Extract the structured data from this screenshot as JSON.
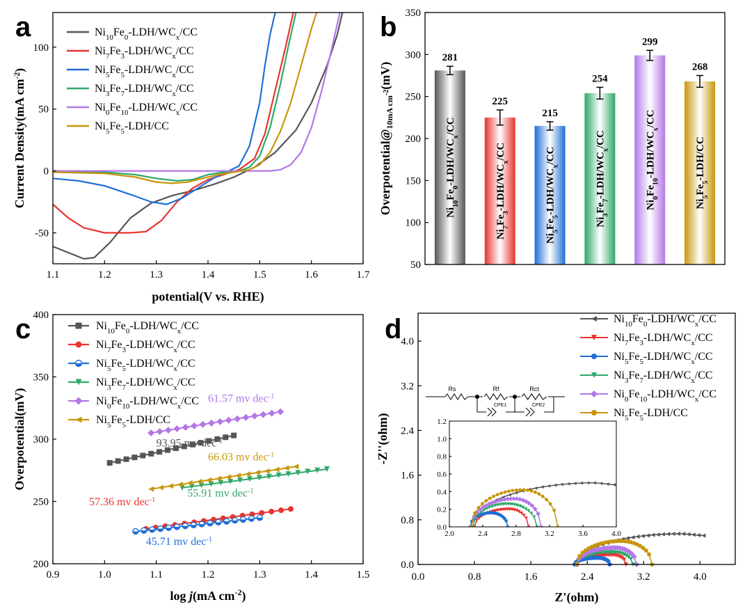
{
  "colors": {
    "s1": "#555555",
    "s2": "#e8332f",
    "s3": "#1f6fd6",
    "s4": "#2ea868",
    "s5": "#b277e8",
    "s6": "#c8960a"
  },
  "series_names": [
    "Ni10Fe0-LDH/WCx/CC",
    "Ni7Fe3-LDH/WCx/CC",
    "Ni5Fe5-LDH/WCx/CC",
    "Ni3Fe7-LDH/WCx/CC",
    "Ni0Fe10-LDH/WCx/CC",
    "Ni5Fe5-LDH/CC"
  ],
  "circuit": {
    "rs": "Rs",
    "rf": "Rf",
    "rct": "Rct",
    "cpe1": "CPE1",
    "cpe2": "CPE2"
  },
  "chart_data": [
    {
      "panel": "a",
      "type": "line",
      "title": "",
      "xlabel": "potential(V vs. RHE)",
      "ylabel": "Current Density(mA cm-2)",
      "xlim": [
        1.1,
        1.7
      ],
      "ylim": [
        -75,
        128
      ],
      "xticks": [
        "1.1",
        "1.2",
        "1.3",
        "1.4",
        "1.5",
        "1.6",
        "1.7"
      ],
      "yticks": [
        "-50",
        "0",
        "50",
        "100"
      ],
      "series": [
        {
          "name": "Ni10Fe0-LDH/WCx/CC",
          "color_key": "s1",
          "points": [
            [
              1.1,
              -61
            ],
            [
              1.13,
              -66
            ],
            [
              1.16,
              -71
            ],
            [
              1.18,
              -70
            ],
            [
              1.21,
              -58
            ],
            [
              1.25,
              -38
            ],
            [
              1.29,
              -26
            ],
            [
              1.33,
              -20
            ],
            [
              1.37,
              -16
            ],
            [
              1.41,
              -11
            ],
            [
              1.45,
              -5
            ],
            [
              1.49,
              3
            ],
            [
              1.53,
              15
            ],
            [
              1.57,
              33
            ],
            [
              1.6,
              55
            ],
            [
              1.63,
              85
            ],
            [
              1.65,
              110
            ],
            [
              1.66,
              128
            ]
          ]
        },
        {
          "name": "Ni7Fe3-LDH/WCx/CC",
          "color_key": "s2",
          "points": [
            [
              1.1,
              -27
            ],
            [
              1.13,
              -38
            ],
            [
              1.16,
              -46
            ],
            [
              1.2,
              -50
            ],
            [
              1.25,
              -50
            ],
            [
              1.28,
              -49
            ],
            [
              1.31,
              -40
            ],
            [
              1.34,
              -25
            ],
            [
              1.37,
              -14
            ],
            [
              1.4,
              -7
            ],
            [
              1.43,
              -3
            ],
            [
              1.46,
              1
            ],
            [
              1.49,
              10
            ],
            [
              1.51,
              30
            ],
            [
              1.53,
              65
            ],
            [
              1.55,
              100
            ],
            [
              1.565,
              128
            ]
          ]
        },
        {
          "name": "Ni5Fe5-LDH/WCx/CC",
          "color_key": "s3",
          "points": [
            [
              1.1,
              -6
            ],
            [
              1.15,
              -8
            ],
            [
              1.2,
              -12
            ],
            [
              1.25,
              -19
            ],
            [
              1.29,
              -25
            ],
            [
              1.32,
              -27
            ],
            [
              1.35,
              -22
            ],
            [
              1.38,
              -14
            ],
            [
              1.41,
              -6
            ],
            [
              1.44,
              0
            ],
            [
              1.46,
              4
            ],
            [
              1.48,
              20
            ],
            [
              1.5,
              55
            ],
            [
              1.51,
              85
            ],
            [
              1.52,
              110
            ],
            [
              1.53,
              128
            ]
          ]
        },
        {
          "name": "Ni3Fe7-LDH/WCx/CC",
          "color_key": "s4",
          "points": [
            [
              1.1,
              0
            ],
            [
              1.2,
              -1
            ],
            [
              1.26,
              -3
            ],
            [
              1.3,
              -6
            ],
            [
              1.34,
              -8
            ],
            [
              1.37,
              -7
            ],
            [
              1.4,
              -3
            ],
            [
              1.43,
              -1
            ],
            [
              1.46,
              0
            ],
            [
              1.48,
              3
            ],
            [
              1.5,
              12
            ],
            [
              1.52,
              35
            ],
            [
              1.54,
              70
            ],
            [
              1.555,
              100
            ],
            [
              1.57,
              128
            ]
          ]
        },
        {
          "name": "Ni0Fe10-LDH/WCx/CC",
          "color_key": "s5",
          "points": [
            [
              1.1,
              0
            ],
            [
              1.3,
              0
            ],
            [
              1.45,
              0
            ],
            [
              1.52,
              0
            ],
            [
              1.54,
              1
            ],
            [
              1.56,
              5
            ],
            [
              1.58,
              15
            ],
            [
              1.6,
              35
            ],
            [
              1.62,
              65
            ],
            [
              1.64,
              100
            ],
            [
              1.655,
              128
            ]
          ]
        },
        {
          "name": "Ni5Fe5-LDH/CC",
          "color_key": "s6",
          "points": [
            [
              1.1,
              -1
            ],
            [
              1.2,
              -2
            ],
            [
              1.26,
              -5
            ],
            [
              1.3,
              -9
            ],
            [
              1.33,
              -10
            ],
            [
              1.36,
              -9
            ],
            [
              1.39,
              -6
            ],
            [
              1.42,
              -3
            ],
            [
              1.45,
              -1
            ],
            [
              1.48,
              1
            ],
            [
              1.5,
              5
            ],
            [
              1.52,
              15
            ],
            [
              1.54,
              32
            ],
            [
              1.56,
              55
            ],
            [
              1.58,
              85
            ],
            [
              1.6,
              115
            ],
            [
              1.61,
              128
            ]
          ]
        }
      ]
    },
    {
      "panel": "b",
      "type": "bar",
      "title": "",
      "xlabel": "",
      "ylabel": "Overpotential@10mA cm-2(mV)",
      "ylim": [
        50,
        350
      ],
      "yticks": [
        "50",
        "100",
        "150",
        "200",
        "250",
        "300",
        "350"
      ],
      "categories": [
        "Ni10Fe0-LDH/WCx/CC",
        "Ni7Fe3-LDH/WCx/CC",
        "Ni5Fe5-LDH/WCx/CC",
        "Ni3Fe7-LDH/WCx/CC",
        "Ni0Fe10-LDH/WCx/CC",
        "Ni5Fe5-LDH/CC"
      ],
      "values": [
        281,
        225,
        215,
        254,
        299,
        268
      ],
      "value_labels": [
        "281",
        "225",
        "215",
        "254",
        "299",
        "268"
      ],
      "errors": [
        5,
        9,
        5,
        7,
        6,
        7
      ]
    },
    {
      "panel": "c",
      "type": "scatter",
      "title": "",
      "xlabel": "log j(mA cm-2)",
      "ylabel": "Overpotential(mV)",
      "xlim": [
        0.9,
        1.5
      ],
      "ylim": [
        200,
        400
      ],
      "xticks": [
        "0.9",
        "1.0",
        "1.1",
        "1.2",
        "1.3",
        "1.4",
        "1.5"
      ],
      "yticks": [
        "200",
        "250",
        "300",
        "350",
        "400"
      ],
      "series": [
        {
          "name": "Ni10Fe0-LDH/WCx/CC",
          "color_key": "s1",
          "marker": "square",
          "x_range": [
            1.01,
            1.25
          ],
          "y_range": [
            281,
            303
          ],
          "slope_label": "93.95 mv dec-1"
        },
        {
          "name": "Ni7Fe3-LDH/WCx/CC",
          "color_key": "s2",
          "marker": "circle",
          "x_range": [
            1.08,
            1.36
          ],
          "y_range": [
            228,
            244
          ],
          "slope_label": "57.36 mv dec-1"
        },
        {
          "name": "Ni5Fe5-LDH/WCx/CC",
          "color_key": "s3",
          "marker": "circle-half",
          "x_range": [
            1.06,
            1.3
          ],
          "y_range": [
            226,
            237
          ],
          "slope_label": "45.71 mv dec-1"
        },
        {
          "name": "Ni3Fe7-LDH/WCx/CC",
          "color_key": "s4",
          "marker": "triangle-down",
          "x_range": [
            1.15,
            1.43
          ],
          "y_range": [
            261,
            276
          ],
          "slope_label": "55.91 mv dec-1"
        },
        {
          "name": "Ni0Fe10-LDH/WCx/CC",
          "color_key": "s5",
          "marker": "diamond",
          "x_range": [
            1.09,
            1.34
          ],
          "y_range": [
            305,
            322
          ],
          "slope_label": "61.57 mv dec-1"
        },
        {
          "name": "Ni5Fe5-LDH/CC",
          "color_key": "s6",
          "marker": "triangle-left",
          "x_range": [
            1.09,
            1.37
          ],
          "y_range": [
            260,
            278
          ],
          "slope_label": "66.03 mv dec-1"
        }
      ]
    },
    {
      "panel": "d",
      "type": "scatter",
      "title": "",
      "xlabel": "Z'(ohm)",
      "ylabel": "-Z''(ohm)",
      "xlim": [
        0,
        4.5
      ],
      "ylim": [
        0,
        4.5
      ],
      "xticks": [
        "0.0",
        "0.8",
        "1.6",
        "2.4",
        "3.2",
        "4.0"
      ],
      "yticks": [
        "0.0",
        "0.8",
        "1.6",
        "2.4",
        "3.2",
        "4.0"
      ],
      "series": [
        {
          "name": "Ni10Fe0-LDH/WCx/CC",
          "color_key": "s1",
          "marker": "triangle-left",
          "x_range": [
            2.25,
            4.05
          ],
          "peak": [
            3.75,
            0.55
          ]
        },
        {
          "name": "Ni7Fe3-LDH/WCx/CC",
          "color_key": "s2",
          "marker": "triangle-down",
          "x_range": [
            2.25,
            2.95
          ],
          "peak": [
            2.75,
            0.17
          ]
        },
        {
          "name": "Ni5Fe5-LDH/WCx/CC",
          "color_key": "s3",
          "marker": "circle",
          "x_range": [
            2.22,
            2.72
          ],
          "peak": [
            2.55,
            0.12
          ]
        },
        {
          "name": "Ni3Fe7-LDH/WCx/CC",
          "color_key": "s4",
          "marker": "triangle-down",
          "x_range": [
            2.25,
            3.05
          ],
          "peak": [
            2.75,
            0.22
          ]
        },
        {
          "name": "Ni0Fe10-LDH/WCx/CC",
          "color_key": "s5",
          "marker": "diamond",
          "x_range": [
            2.25,
            3.1
          ],
          "peak": [
            2.8,
            0.3
          ]
        },
        {
          "name": "Ni5Fe5-LDH/CC",
          "color_key": "s6",
          "marker": "circle",
          "x_range": [
            2.25,
            3.32
          ],
          "peak": [
            2.88,
            0.42
          ]
        }
      ],
      "inset": {
        "xlim": [
          2.0,
          4.0
        ],
        "ylim": [
          0,
          1.2
        ],
        "xticks": [
          "2.0",
          "2.4",
          "2.8",
          "3.2",
          "3.6",
          "4.0"
        ],
        "yticks": [
          "0.0",
          "0.2",
          "0.4",
          "0.6",
          "0.8",
          "1.0",
          "1.2"
        ]
      }
    }
  ]
}
